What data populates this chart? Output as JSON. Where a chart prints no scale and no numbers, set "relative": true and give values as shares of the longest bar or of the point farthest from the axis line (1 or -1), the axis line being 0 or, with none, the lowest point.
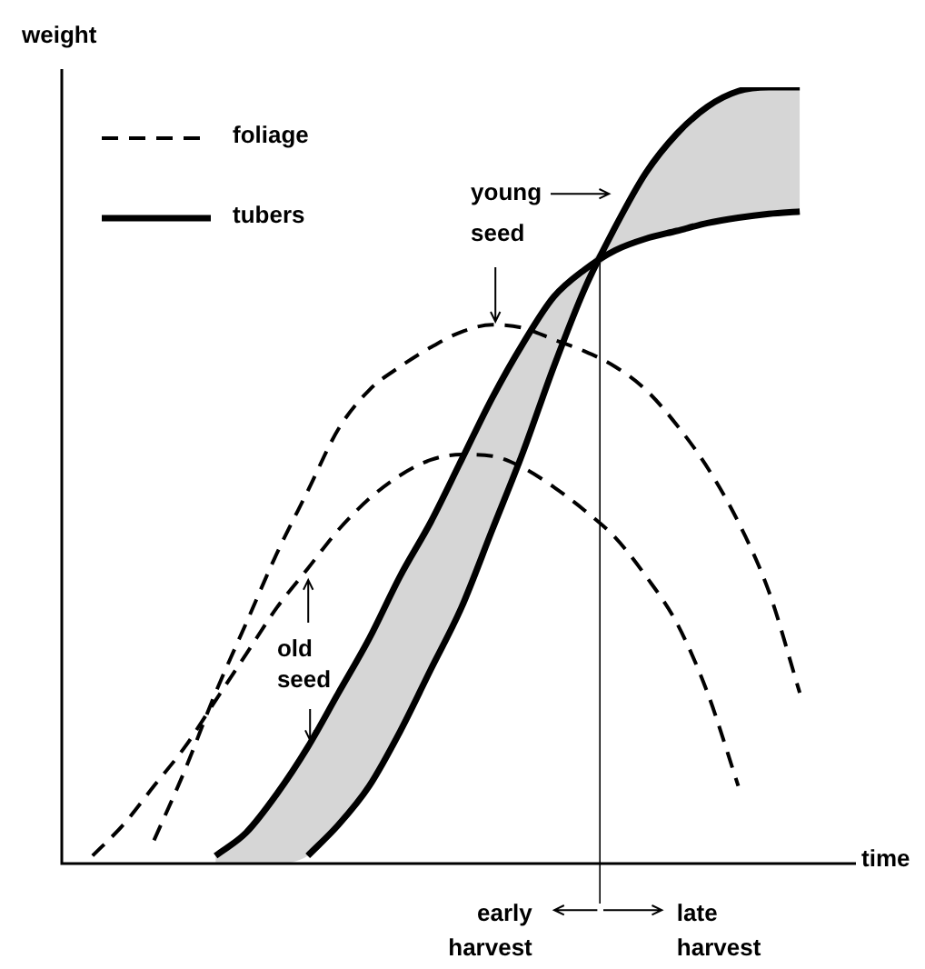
{
  "chart_data": {
    "type": "line",
    "relative": true,
    "xlabel": "time",
    "ylabel": "weight",
    "legend": "top left",
    "marker": "none",
    "categories": [
      null,
      null,
      null,
      null,
      null,
      null,
      null,
      null,
      null,
      null,
      null,
      null,
      null,
      null,
      null,
      null,
      null,
      null,
      null,
      null,
      null,
      null,
      null,
      null,
      null,
      null
    ],
    "series": [
      {
        "name": "foliage",
        "color": "#000000",
        "line_style": "dashed",
        "values": [
          null,
          0.01,
          0.05,
          0.1,
          0.15,
          0.21,
          0.27,
          0.33,
          0.38,
          0.43,
          0.47,
          0.5,
          0.52,
          0.527,
          0.525,
          0.51,
          0.485,
          0.455,
          0.42,
          0.37,
          0.31,
          0.22,
          0.1,
          null,
          null,
          null
        ]
      },
      {
        "color": "#000000",
        "line_style": "dashed",
        "values": [
          null,
          null,
          null,
          0.03,
          0.12,
          0.22,
          0.31,
          0.4,
          0.48,
          0.56,
          0.61,
          0.64,
          0.665,
          0.685,
          0.694,
          0.69,
          0.675,
          0.66,
          0.64,
          0.61,
          0.565,
          0.51,
          0.44,
          0.35,
          0.22,
          null
        ]
      },
      {
        "name": "tubers",
        "color": "#000000",
        "line_style": "solid",
        "values": [
          null,
          null,
          null,
          null,
          null,
          0.01,
          0.04,
          0.09,
          0.15,
          0.22,
          0.29,
          0.37,
          0.44,
          0.52,
          0.6,
          0.67,
          0.73,
          0.765,
          0.79,
          0.805,
          0.815,
          0.825,
          0.832,
          0.837,
          0.84,
          null
        ]
      },
      {
        "color": "#000000",
        "line_style": "solid",
        "values": [
          null,
          null,
          null,
          null,
          null,
          null,
          null,
          null,
          0.01,
          0.05,
          0.1,
          0.17,
          0.25,
          0.33,
          0.43,
          0.53,
          0.64,
          0.74,
          0.82,
          0.89,
          0.94,
          0.975,
          0.995,
          1,
          1,
          null
        ],
        "lower": [
          null,
          null,
          null,
          null,
          null,
          0,
          0,
          0,
          0.01,
          0.05,
          0.1,
          0.17,
          0.25,
          0.33,
          0.43,
          0.53,
          0.64,
          0.74,
          0.79,
          0.805,
          0.815,
          0.825,
          0.832,
          0.837,
          0.84,
          null
        ],
        "upper": [
          null,
          null,
          null,
          null,
          null,
          0.01,
          0.04,
          0.09,
          0.15,
          0.22,
          0.29,
          0.37,
          0.44,
          0.52,
          0.6,
          0.67,
          0.73,
          0.765,
          0.82,
          0.89,
          0.94,
          0.975,
          0.995,
          1,
          1,
          null
        ]
      }
    ],
    "annotations": [
      "young seed",
      "old seed",
      "early harvest",
      "late harvest"
    ]
  }
}
